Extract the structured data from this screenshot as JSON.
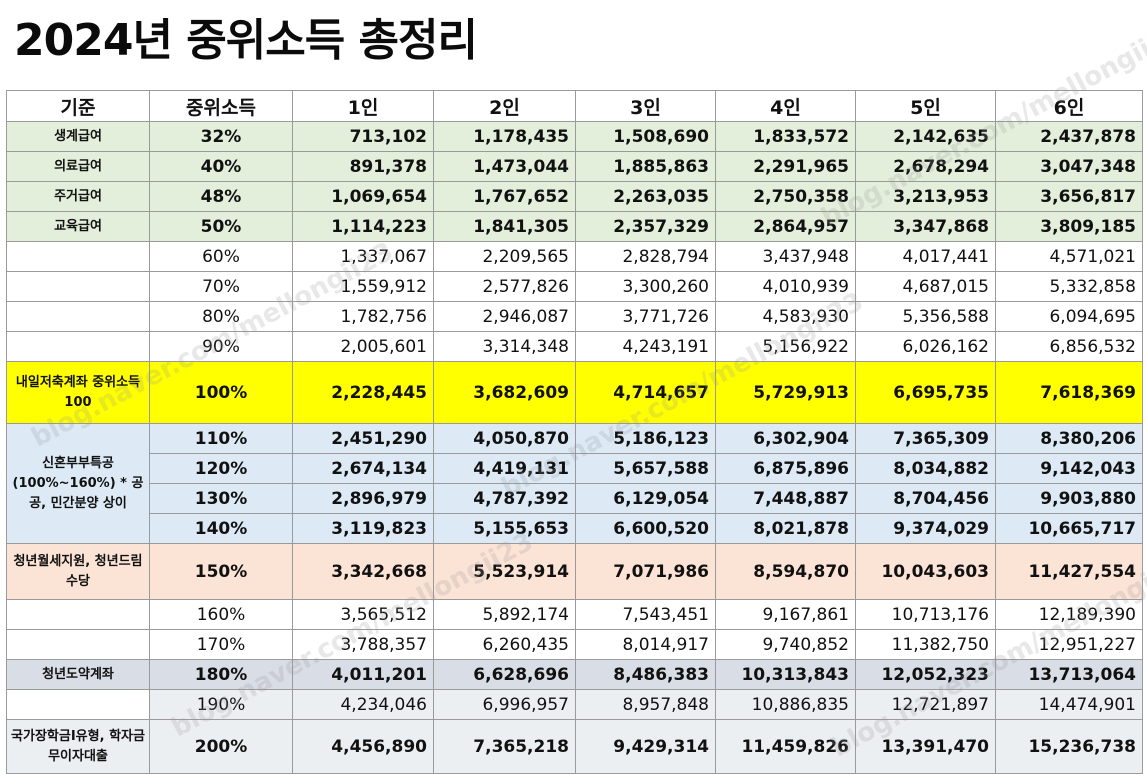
{
  "title": "2024년 중위소득 총정리",
  "table": {
    "headers": [
      "기준",
      "중위소득",
      "1인",
      "2인",
      "3인",
      "4인",
      "5인",
      "6인"
    ],
    "rows": [
      {
        "pct": "32%",
        "values": [
          "713,102",
          "1,178,435",
          "1,508,690",
          "1,833,572",
          "2,142,635",
          "2,437,878"
        ]
      },
      {
        "pct": "40%",
        "values": [
          "891,378",
          "1,473,044",
          "1,885,863",
          "2,291,965",
          "2,678,294",
          "3,047,348"
        ]
      },
      {
        "pct": "48%",
        "values": [
          "1,069,654",
          "1,767,652",
          "2,263,035",
          "2,750,358",
          "3,213,953",
          "3,656,817"
        ]
      },
      {
        "pct": "50%",
        "values": [
          "1,114,223",
          "1,841,305",
          "2,357,329",
          "2,864,957",
          "3,347,868",
          "3,809,185"
        ]
      },
      {
        "pct": "60%",
        "values": [
          "1,337,067",
          "2,209,565",
          "2,828,794",
          "3,437,948",
          "4,017,441",
          "4,571,021"
        ]
      },
      {
        "pct": "70%",
        "values": [
          "1,559,912",
          "2,577,826",
          "3,300,260",
          "4,010,939",
          "4,687,015",
          "5,332,858"
        ]
      },
      {
        "pct": "80%",
        "values": [
          "1,782,756",
          "2,946,087",
          "3,771,726",
          "4,583,930",
          "5,356,588",
          "6,094,695"
        ]
      },
      {
        "pct": "90%",
        "values": [
          "2,005,601",
          "3,314,348",
          "4,243,191",
          "5,156,922",
          "6,026,162",
          "6,856,532"
        ]
      },
      {
        "pct": "100%",
        "values": [
          "2,228,445",
          "3,682,609",
          "4,714,657",
          "5,729,913",
          "6,695,735",
          "7,618,369"
        ]
      },
      {
        "pct": "110%",
        "values": [
          "2,451,290",
          "4,050,870",
          "5,186,123",
          "6,302,904",
          "7,365,309",
          "8,380,206"
        ]
      },
      {
        "pct": "120%",
        "values": [
          "2,674,134",
          "4,419,131",
          "5,657,588",
          "6,875,896",
          "8,034,882",
          "9,142,043"
        ]
      },
      {
        "pct": "130%",
        "values": [
          "2,896,979",
          "4,787,392",
          "6,129,054",
          "7,448,887",
          "8,704,456",
          "9,903,880"
        ]
      },
      {
        "pct": "140%",
        "values": [
          "3,119,823",
          "5,155,653",
          "6,600,520",
          "8,021,878",
          "9,374,029",
          "10,665,717"
        ]
      },
      {
        "pct": "150%",
        "values": [
          "3,342,668",
          "5,523,914",
          "7,071,986",
          "8,594,870",
          "10,043,603",
          "11,427,554"
        ]
      },
      {
        "pct": "160%",
        "values": [
          "3,565,512",
          "5,892,174",
          "7,543,451",
          "9,167,861",
          "10,713,176",
          "12,189,390"
        ]
      },
      {
        "pct": "170%",
        "values": [
          "3,788,357",
          "6,260,435",
          "8,014,917",
          "9,740,852",
          "11,382,750",
          "12,951,227"
        ]
      },
      {
        "pct": "180%",
        "values": [
          "4,011,201",
          "6,628,696",
          "8,486,383",
          "10,313,843",
          "12,052,323",
          "13,713,064"
        ]
      },
      {
        "pct": "190%",
        "values": [
          "4,234,046",
          "6,996,957",
          "8,957,848",
          "10,886,835",
          "12,721,897",
          "14,474,901"
        ]
      },
      {
        "pct": "200%",
        "values": [
          "4,456,890",
          "7,365,218",
          "9,429,314",
          "11,459,826",
          "13,391,470",
          "15,236,738"
        ]
      }
    ],
    "categories": [
      {
        "text": "생계급여"
      },
      {
        "text": "의료급여"
      },
      {
        "text": "주거급여"
      },
      {
        "text": "교육급여"
      },
      {
        "text": "내일저축계좌 중위소득 100"
      },
      {
        "text": "신혼부부특공 (100%~160%) * 공공, 민간분양 상이"
      },
      {
        "text": "청년월세지원, 청년드림수당"
      },
      {
        "text": "청년도약계좌"
      },
      {
        "text": "국가장학금I유형, 학자금 무이자대출"
      }
    ]
  },
  "watermark": "blog.naver.com/mellongii23",
  "colors": {
    "green": "#e3efdb",
    "yellow": "#ffff00",
    "blue": "#ddeaf6",
    "peach": "#fbe3d6",
    "gray": "#d9dee6",
    "light": "#eceff2"
  }
}
